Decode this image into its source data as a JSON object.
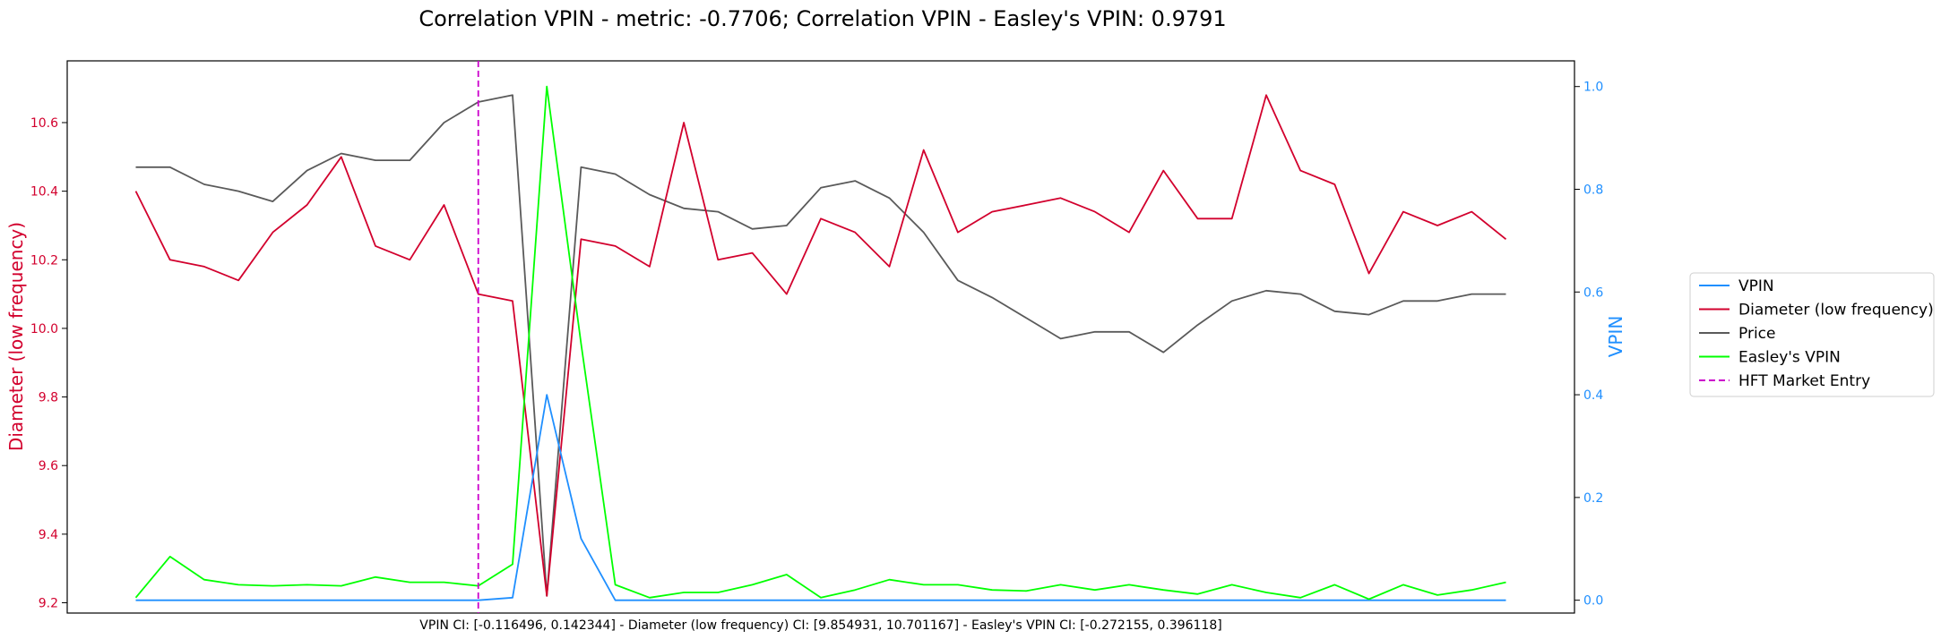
{
  "title": "Correlation VPIN - metric: -0.7706; Correlation VPIN - Easley's VPIN: 0.9791",
  "footer": "VPIN CI: [-0.116496, 0.142344] - Diameter (low frequency) CI: [9.854931, 10.701167] - Easley's VPIN CI: [-0.272155, 0.396118]",
  "colors": {
    "vpin": "#1f8fff",
    "diameter": "#d2002d",
    "price": "#5a5a5a",
    "easley": "#00ff00",
    "hft": "#cc00cc"
  },
  "chart_data": {
    "type": "line",
    "x": [
      0,
      1,
      2,
      3,
      4,
      5,
      6,
      7,
      8,
      9,
      10,
      11,
      12,
      13,
      14,
      15,
      16,
      17,
      18,
      19,
      20,
      21,
      22,
      23,
      24,
      25,
      26,
      27,
      28,
      29,
      30,
      31,
      32,
      33,
      34,
      35,
      36,
      37,
      38,
      39,
      40
    ],
    "ylabel_left": "Diameter (low frequency)",
    "ylabel_right": "VPIN",
    "ylim_left": [
      9.17,
      10.78
    ],
    "ylim_right": [
      -0.025,
      1.05
    ],
    "yticks_left": [
      "9.2",
      "9.4",
      "9.6",
      "9.8",
      "10.0",
      "10.2",
      "10.4",
      "10.6"
    ],
    "yticks_right": [
      "0.0",
      "0.2",
      "0.4",
      "0.6",
      "0.8",
      "1.0"
    ],
    "grid": false,
    "legend_position": "right",
    "series": [
      {
        "name": "VPIN",
        "axis": "right",
        "color": "#1f8fff",
        "values": [
          0,
          0,
          0,
          0,
          0,
          0,
          0,
          0,
          0,
          0,
          0,
          0.005,
          0.4,
          0.12,
          0,
          0,
          0,
          0,
          0,
          0,
          0,
          0,
          0,
          0,
          0,
          0,
          0,
          0,
          0,
          0,
          0,
          0,
          0,
          0,
          0,
          0,
          0,
          0,
          0,
          0,
          0
        ]
      },
      {
        "name": "Diameter (low frequency)",
        "axis": "left",
        "color": "#d2002d",
        "values": [
          10.4,
          10.2,
          10.18,
          10.14,
          10.28,
          10.36,
          10.5,
          10.24,
          10.2,
          10.36,
          10.1,
          10.08,
          9.22,
          10.26,
          10.24,
          10.18,
          10.6,
          10.2,
          10.22,
          10.1,
          10.32,
          10.28,
          10.18,
          10.52,
          10.28,
          10.34,
          10.36,
          10.38,
          10.34,
          10.28,
          10.46,
          10.32,
          10.32,
          10.68,
          10.46,
          10.42,
          10.16,
          10.34,
          10.3,
          10.34,
          10.26
        ]
      },
      {
        "name": "Price",
        "axis": "left",
        "color": "#5a5a5a",
        "values": [
          10.47,
          10.47,
          10.42,
          10.4,
          10.37,
          10.46,
          10.51,
          10.49,
          10.49,
          10.6,
          10.66,
          10.68,
          9.22,
          10.47,
          10.45,
          10.39,
          10.35,
          10.34,
          10.29,
          10.3,
          10.41,
          10.43,
          10.38,
          10.28,
          10.14,
          10.09,
          10.03,
          9.97,
          9.99,
          9.99,
          9.93,
          10.01,
          10.08,
          10.11,
          10.1,
          10.05,
          10.04,
          10.08,
          10.08,
          10.1,
          10.1
        ]
      },
      {
        "name": "Easley's VPIN",
        "axis": "right",
        "color": "#00ff00",
        "values": [
          0.005,
          0.085,
          0.04,
          0.03,
          0.028,
          0.03,
          0.028,
          0.045,
          0.035,
          0.035,
          0.028,
          0.07,
          1.0,
          0.5,
          0.03,
          0.005,
          0.015,
          0.015,
          0.03,
          0.05,
          0.005,
          0.02,
          0.04,
          0.03,
          0.03,
          0.02,
          0.018,
          0.03,
          0.02,
          0.03,
          0.02,
          0.012,
          0.03,
          0.015,
          0.005,
          0.03,
          0.002,
          0.03,
          0.01,
          0.02,
          0.035
        ]
      }
    ],
    "vline": {
      "name": "HFT Market Entry",
      "x": 10,
      "color": "#cc00cc"
    },
    "legend": [
      "VPIN",
      "Diameter (low frequency)",
      "Price",
      "Easley's VPIN",
      "HFT Market Entry"
    ]
  }
}
